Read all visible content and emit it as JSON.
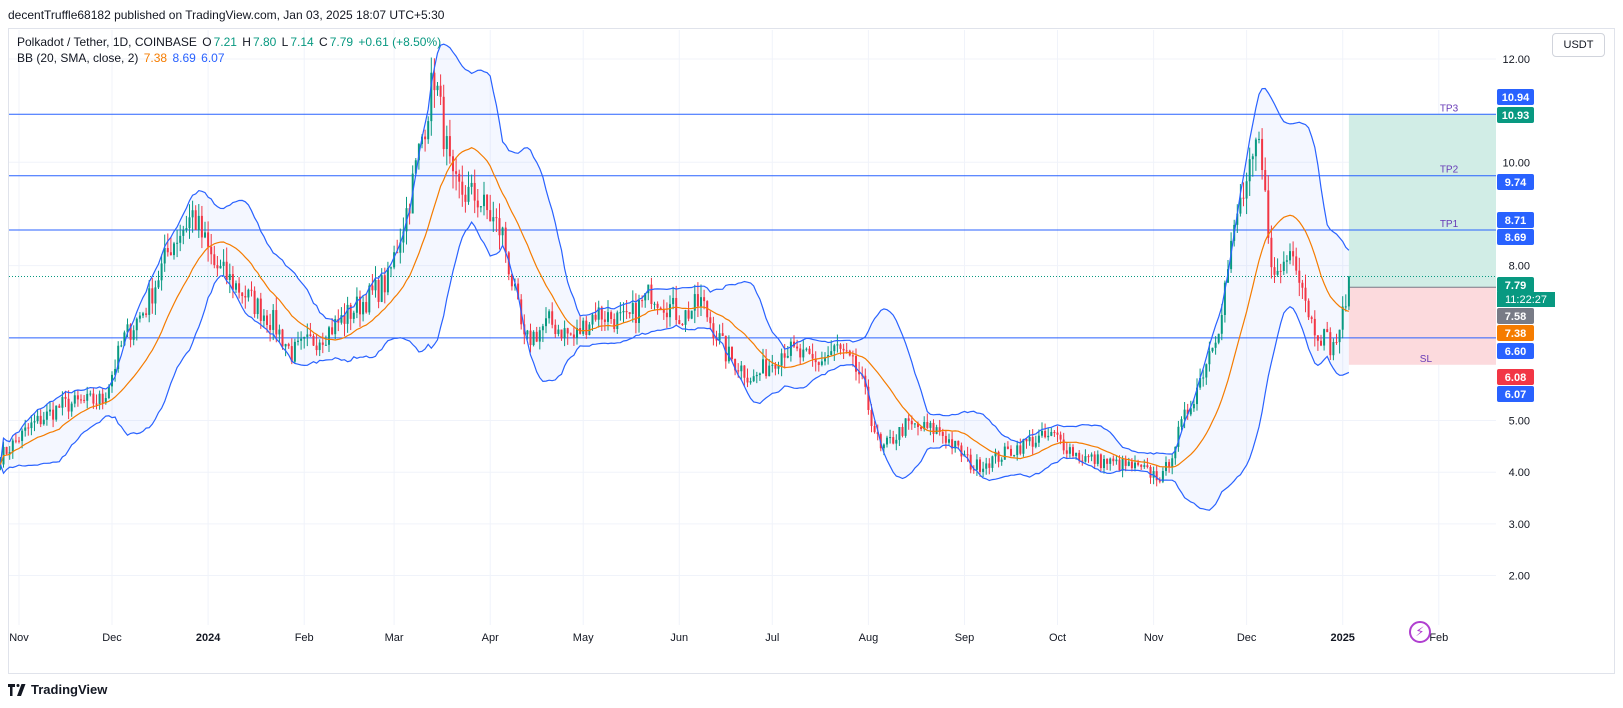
{
  "header": {
    "published": "decentTruffle68182 published on TradingView.com, Jan 03, 2025 18:07 UTC+5:30"
  },
  "legend": {
    "symbol": "Polkadot / Tether, 1D, COINBASE",
    "open_label": "O",
    "open": "7.21",
    "high_label": "H",
    "high": "7.80",
    "low_label": "L",
    "low": "7.14",
    "close_label": "C",
    "close": "7.79",
    "change": "+0.61 (+8.50%)",
    "bb_label": "BB (20, SMA, close, 2)",
    "bb_mid": "7.38",
    "bb_upper": "8.69",
    "bb_lower": "6.07"
  },
  "currency_button": "USDT",
  "footer": {
    "brand": "TradingView"
  },
  "colors": {
    "up": "#089981",
    "down": "#f23645",
    "bb_band": "#2962ff",
    "bb_mid": "#f57c00",
    "hline": "#2962ff",
    "tp_zone": "#d1ede6",
    "sl_zone": "#fcdadd"
  },
  "chart_data": {
    "type": "candlestick",
    "y_axis": {
      "ticks": [
        "2.00",
        "3.00",
        "4.00",
        "5.00",
        "8.00",
        "10.00",
        "12.00"
      ],
      "range": [
        1.2,
        12.2
      ]
    },
    "x_axis": {
      "ticks": [
        "Nov",
        "Dec",
        "2024",
        "Feb",
        "Mar",
        "Apr",
        "May",
        "Jun",
        "Jul",
        "Aug",
        "Sep",
        "Oct",
        "Nov",
        "Dec",
        "2025",
        "Feb"
      ]
    },
    "horizontal_lines": [
      {
        "name": "TP3",
        "value": 10.93
      },
      {
        "name": "TP2",
        "value": 9.74
      },
      {
        "name": "TP1",
        "value": 8.69
      },
      {
        "name": "",
        "value": 6.6
      }
    ],
    "position": {
      "entry": 7.58,
      "stop": 6.08,
      "target": 10.93,
      "stop_label": "SL"
    },
    "price_labels": [
      {
        "value": "10.94",
        "color": "#2962ff"
      },
      {
        "value": "10.93",
        "color": "#089981"
      },
      {
        "value": "9.74",
        "color": "#2962ff"
      },
      {
        "value": "8.71",
        "color": "#2962ff"
      },
      {
        "value": "8.69",
        "color": "#2962ff"
      },
      {
        "value": "7.79",
        "color": "#089981"
      },
      {
        "value": "7.58",
        "color": "#787b86"
      },
      {
        "value": "7.38",
        "color": "#f57c00"
      },
      {
        "value": "6.60",
        "color": "#2962ff"
      },
      {
        "value": "6.08",
        "color": "#f23645"
      },
      {
        "value": "6.07",
        "color": "#2962ff"
      }
    ],
    "countdown": "11:22:27",
    "close_anchors": [
      [
        "2023-10-26",
        4.3
      ],
      [
        "2023-11-05",
        4.9
      ],
      [
        "2023-11-15",
        5.3
      ],
      [
        "2023-11-28",
        5.4
      ],
      [
        "2023-12-05",
        6.6
      ],
      [
        "2023-12-12",
        7.2
      ],
      [
        "2023-12-20",
        8.4
      ],
      [
        "2023-12-27",
        9.0
      ],
      [
        "2024-01-03",
        8.0
      ],
      [
        "2024-01-12",
        7.5
      ],
      [
        "2024-01-22",
        6.9
      ],
      [
        "2024-01-28",
        6.3
      ],
      [
        "2024-02-08",
        6.7
      ],
      [
        "2024-02-18",
        7.2
      ],
      [
        "2024-02-28",
        7.7
      ],
      [
        "2024-03-06",
        9.3
      ],
      [
        "2024-03-14",
        11.7
      ],
      [
        "2024-03-20",
        9.5
      ],
      [
        "2024-03-28",
        9.3
      ],
      [
        "2024-04-05",
        8.6
      ],
      [
        "2024-04-12",
        6.5
      ],
      [
        "2024-04-20",
        6.9
      ],
      [
        "2024-04-28",
        6.6
      ],
      [
        "2024-05-05",
        7.1
      ],
      [
        "2024-05-15",
        6.9
      ],
      [
        "2024-05-23",
        7.5
      ],
      [
        "2024-06-02",
        7.0
      ],
      [
        "2024-06-08",
        7.3
      ],
      [
        "2024-06-16",
        6.3
      ],
      [
        "2024-06-25",
        5.8
      ],
      [
        "2024-07-05",
        6.4
      ],
      [
        "2024-07-15",
        6.1
      ],
      [
        "2024-07-22",
        6.4
      ],
      [
        "2024-07-29",
        5.9
      ],
      [
        "2024-08-05",
        4.4
      ],
      [
        "2024-08-13",
        4.9
      ],
      [
        "2024-08-24",
        4.8
      ],
      [
        "2024-09-04",
        4.1
      ],
      [
        "2024-09-12",
        4.3
      ],
      [
        "2024-09-22",
        4.6
      ],
      [
        "2024-09-30",
        4.7
      ],
      [
        "2024-10-08",
        4.3
      ],
      [
        "2024-10-16",
        4.2
      ],
      [
        "2024-10-25",
        4.1
      ],
      [
        "2024-11-04",
        3.9
      ],
      [
        "2024-11-10",
        4.9
      ],
      [
        "2024-11-16",
        5.8
      ],
      [
        "2024-11-22",
        6.9
      ],
      [
        "2024-11-28",
        9.0
      ],
      [
        "2024-12-05",
        10.3
      ],
      [
        "2024-12-10",
        7.7
      ],
      [
        "2024-12-16",
        8.4
      ],
      [
        "2024-12-22",
        6.9
      ],
      [
        "2024-12-29",
        6.4
      ],
      [
        "2025-01-02",
        7.21
      ],
      [
        "2025-01-03",
        7.79
      ]
    ],
    "last_bar": {
      "open": 7.21,
      "high": 7.8,
      "low": 7.14,
      "close": 7.79
    },
    "bollinger": {
      "period": 20,
      "std": 2,
      "last_mid": 7.38,
      "last_upper": 8.69,
      "last_lower": 6.07
    }
  }
}
